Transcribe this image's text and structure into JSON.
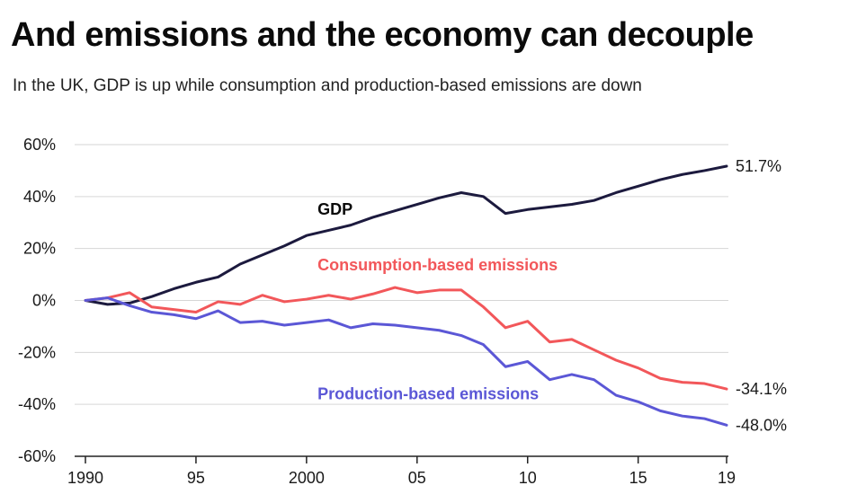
{
  "title": "And emissions and the economy can decouple",
  "subtitle": "In the UK, GDP is up while consumption and production-based emissions are down",
  "chart_data": {
    "type": "line",
    "title": "And emissions and the economy can decouple",
    "subtitle": "In the UK, GDP is up while consumption and production-based emissions are down",
    "xlabel": "",
    "ylabel": "",
    "x": [
      1990,
      1991,
      1992,
      1993,
      1994,
      1995,
      1996,
      1997,
      1998,
      1999,
      2000,
      2001,
      2002,
      2003,
      2004,
      2005,
      2006,
      2007,
      2008,
      2009,
      2010,
      2011,
      2012,
      2013,
      2014,
      2015,
      2016,
      2017,
      2018,
      2019
    ],
    "xlim": [
      1990,
      2019
    ],
    "ylim": [
      -60,
      60
    ],
    "grid": true,
    "x_ticks": [
      {
        "value": 1990,
        "label": "1990"
      },
      {
        "value": 1995,
        "label": "95"
      },
      {
        "value": 2000,
        "label": "2000"
      },
      {
        "value": 2005,
        "label": "05"
      },
      {
        "value": 2010,
        "label": "10"
      },
      {
        "value": 2015,
        "label": "15"
      },
      {
        "value": 2019,
        "label": "19"
      }
    ],
    "y_ticks": [
      {
        "value": 60,
        "label": "60%"
      },
      {
        "value": 40,
        "label": "40%"
      },
      {
        "value": 20,
        "label": "20%"
      },
      {
        "value": 0,
        "label": "0%"
      },
      {
        "value": -20,
        "label": "-20%"
      },
      {
        "value": -40,
        "label": "-40%"
      },
      {
        "value": -60,
        "label": "-60%"
      }
    ],
    "series": [
      {
        "name": "GDP",
        "color": "#1c1a3e",
        "label_at": [
          2000.5,
          33
        ],
        "end_label": "51.7%",
        "values": [
          0,
          -1.5,
          -1,
          1.5,
          4.5,
          7,
          9,
          14,
          17.5,
          21,
          25,
          27,
          29,
          32,
          34.5,
          37,
          39.5,
          41.5,
          40,
          33.5,
          35,
          36,
          37,
          38.5,
          41.5,
          44,
          46.5,
          48.5,
          50,
          51.7
        ]
      },
      {
        "name": "Consumption-based emissions",
        "color": "#f2575a",
        "label_at": [
          2000.5,
          11.5
        ],
        "end_label": "-34.1%",
        "values": [
          0,
          1,
          3,
          -2.5,
          -3.5,
          -4.5,
          -0.5,
          -1.5,
          2,
          -0.5,
          0.5,
          2,
          0.5,
          2.5,
          5,
          3,
          4,
          4,
          -2.5,
          -10.5,
          -8,
          -16,
          -15,
          -19,
          -23,
          -26,
          -30,
          -31.5,
          -32,
          -34.1
        ]
      },
      {
        "name": "Production-based emissions",
        "color": "#5b57d6",
        "label_at": [
          2000.5,
          -38
        ],
        "end_label": "-48.0%",
        "values": [
          0,
          1,
          -2,
          -4.5,
          -5.5,
          -7,
          -4,
          -8.5,
          -8,
          -9.5,
          -8.5,
          -7.5,
          -10.5,
          -9,
          -9.5,
          -10.5,
          -11.5,
          -13.5,
          -17,
          -25.5,
          -23.5,
          -30.5,
          -28.5,
          -30.5,
          -36.5,
          -39,
          -42.5,
          -44.5,
          -45.5,
          -48.0
        ]
      }
    ]
  }
}
